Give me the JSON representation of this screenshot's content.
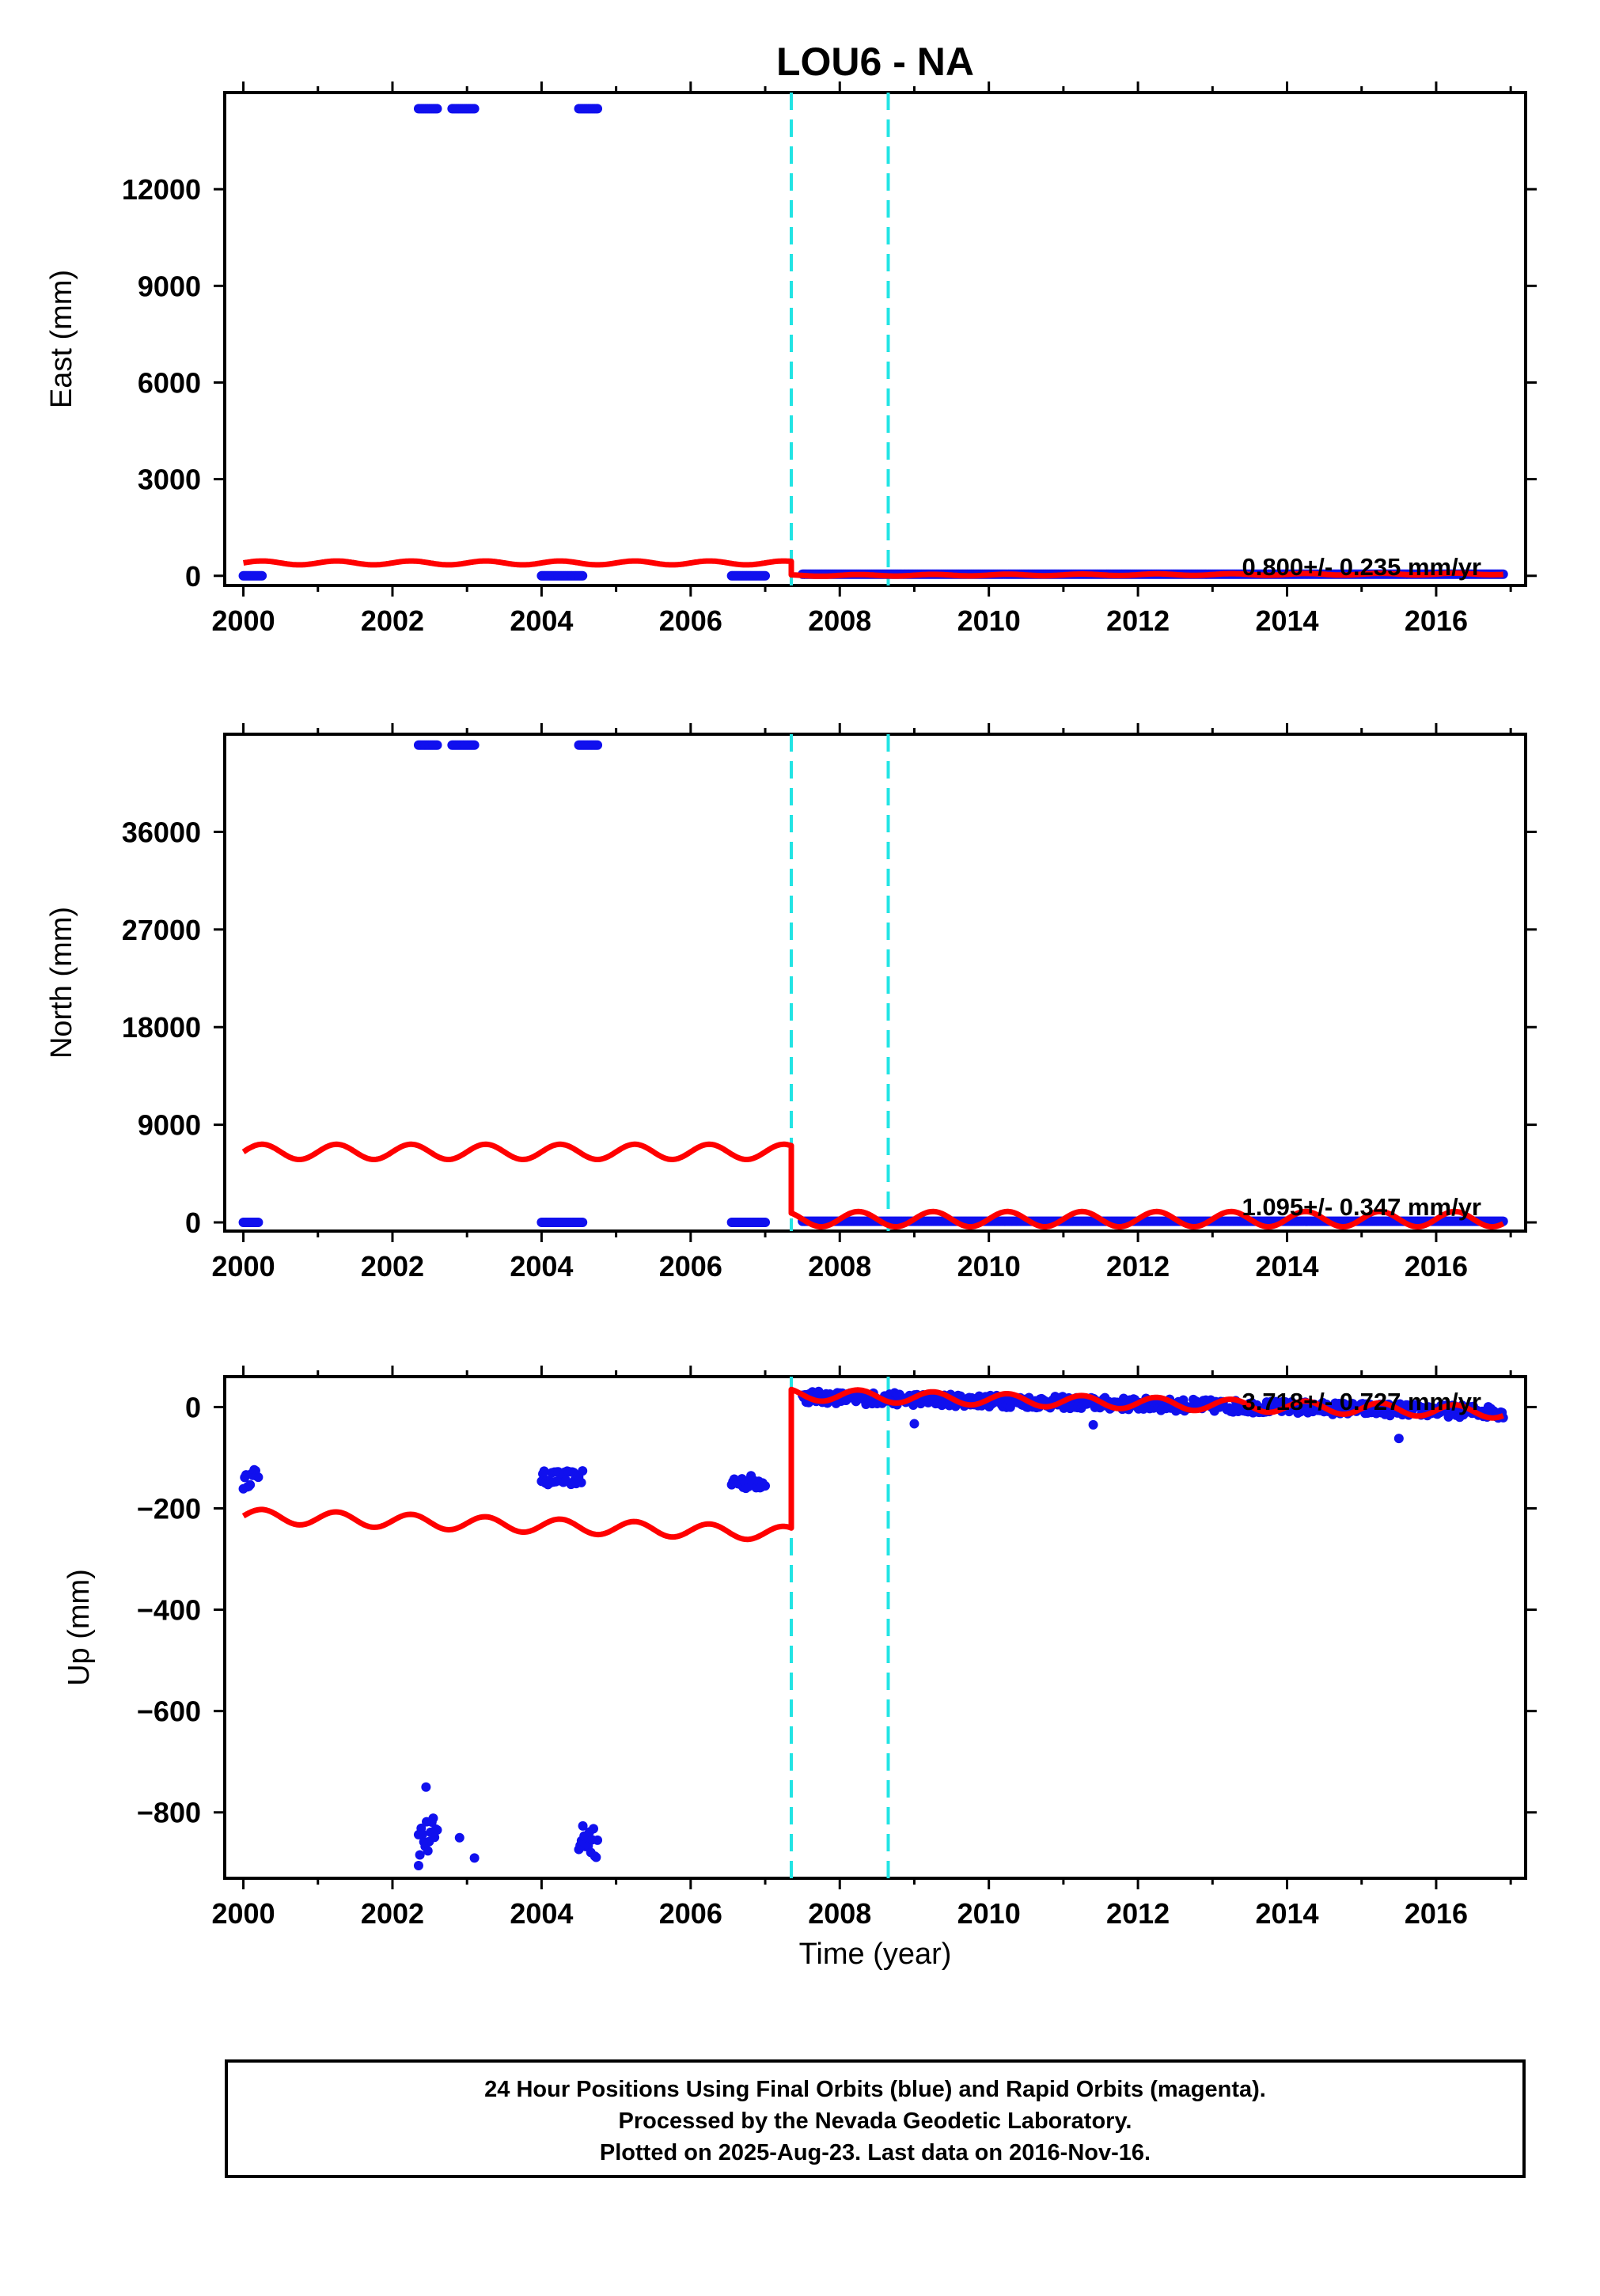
{
  "title": "LOU6 - NA",
  "xlabel": "Time (year)",
  "colors": {
    "points": "#1010ee",
    "model": "#ff0000",
    "events": "#22e4e4",
    "axis": "#000000"
  },
  "footer": {
    "line1": "24 Hour Positions Using Final Orbits (blue) and Rapid Orbits (magenta).",
    "line2": "Processed by the Nevada Geodetic Laboratory.",
    "line3": "Plotted on 2025-Aug-23. Last data on 2016-Nov-16."
  },
  "chart_data": [
    {
      "type": "scatter",
      "panel": "east",
      "ylabel": "East (mm)",
      "xlim": [
        1999.75,
        2017.2
      ],
      "ylim": [
        -300,
        15000
      ],
      "xticks": [
        2000,
        2002,
        2004,
        2006,
        2008,
        2010,
        2012,
        2014,
        2016
      ],
      "yticks": [
        0,
        3000,
        6000,
        9000,
        12000
      ],
      "ytick_labels": [
        "0",
        "3000",
        "6000",
        "9000",
        "12000"
      ],
      "velocity_label": "0.800+/- 0.235 mm/yr",
      "events": [
        2007.35,
        2008.65
      ],
      "point_clusters": [
        {
          "x": [
            2000.0,
            2000.25
          ],
          "y": [
            0,
            0
          ]
        },
        {
          "x": [
            2002.35,
            2002.6
          ],
          "y": [
            14500,
            14500
          ]
        },
        {
          "x": [
            2002.8,
            2003.1
          ],
          "y": [
            14500,
            14500
          ]
        },
        {
          "x": [
            2004.5,
            2004.75
          ],
          "y": [
            14500,
            14500
          ]
        },
        {
          "x": [
            2004.0,
            2004.55
          ],
          "y": [
            0,
            0
          ]
        },
        {
          "x": [
            2006.55,
            2007.0
          ],
          "y": [
            0,
            0
          ]
        },
        {
          "x": [
            2007.5,
            2016.9
          ],
          "y": [
            50,
            50
          ]
        }
      ],
      "model": {
        "x": [
          2000.0,
          2007.35
        ],
        "y": [
          400,
          400
        ],
        "amp": 60,
        "after": {
          "x": [
            2007.35,
            2016.9
          ],
          "y": [
            10,
            60
          ],
          "amp": 25
        }
      }
    },
    {
      "type": "scatter",
      "panel": "north",
      "ylabel": "North (mm)",
      "xlim": [
        1999.75,
        2017.2
      ],
      "ylim": [
        -800,
        45000
      ],
      "xticks": [
        2000,
        2002,
        2004,
        2006,
        2008,
        2010,
        2012,
        2014,
        2016
      ],
      "yticks": [
        0,
        9000,
        18000,
        27000,
        36000
      ],
      "ytick_labels": [
        "0",
        "9000",
        "18000",
        "27000",
        "36000"
      ],
      "velocity_label": "1.095+/- 0.347 mm/yr",
      "events": [
        2007.35,
        2008.65
      ],
      "point_clusters": [
        {
          "x": [
            2000.0,
            2000.2
          ],
          "y": [
            0,
            0
          ]
        },
        {
          "x": [
            2002.35,
            2002.6
          ],
          "y": [
            44000,
            44000
          ]
        },
        {
          "x": [
            2002.8,
            2003.1
          ],
          "y": [
            44000,
            44000
          ]
        },
        {
          "x": [
            2004.5,
            2004.75
          ],
          "y": [
            44000,
            44000
          ]
        },
        {
          "x": [
            2004.0,
            2004.55
          ],
          "y": [
            0,
            0
          ]
        },
        {
          "x": [
            2006.55,
            2007.0
          ],
          "y": [
            0,
            0
          ]
        },
        {
          "x": [
            2007.5,
            2016.9
          ],
          "y": [
            100,
            100
          ]
        }
      ],
      "model": {
        "x": [
          2000.0,
          2007.35
        ],
        "y": [
          6500,
          6500
        ],
        "amp": 700,
        "after": {
          "x": [
            2007.35,
            2016.9
          ],
          "y": [
            300,
            300
          ],
          "amp": 700
        }
      }
    },
    {
      "type": "scatter",
      "panel": "up",
      "ylabel": "Up (mm)",
      "xlim": [
        1999.75,
        2017.2
      ],
      "ylim": [
        -930,
        60
      ],
      "xticks": [
        2000,
        2002,
        2004,
        2006,
        2008,
        2010,
        2012,
        2014,
        2016
      ],
      "yticks": [
        -800,
        -600,
        -400,
        -200,
        0
      ],
      "ytick_labels": [
        "−800",
        "−600",
        "−400",
        "−200",
        "0"
      ],
      "velocity_label": "3.718+/- 0.727 mm/yr",
      "events": [
        2007.35,
        2008.65
      ],
      "point_clusters": [
        {
          "x": [
            2000.0,
            2000.2
          ],
          "y": [
            -150,
            -130
          ]
        },
        {
          "x": [
            2004.0,
            2004.55
          ],
          "y": [
            -140,
            -140
          ]
        },
        {
          "x": [
            2006.55,
            2007.0
          ],
          "y": [
            -148,
            -148
          ]
        },
        {
          "x": [
            2002.35,
            2002.6
          ],
          "y": [
            -850,
            -850
          ]
        },
        {
          "x": [
            2004.5,
            2004.75
          ],
          "y": [
            -850,
            -850
          ]
        },
        {
          "x": [
            2007.5,
            2016.9
          ],
          "y": [
            20,
            -10
          ]
        }
      ],
      "isolated_points": [
        {
          "x": 2002.45,
          "y": -750
        },
        {
          "x": 2002.9,
          "y": -850
        },
        {
          "x": 2003.1,
          "y": -890
        },
        {
          "x": 2002.35,
          "y": -905
        },
        {
          "x": 2009.0,
          "y": -33
        },
        {
          "x": 2011.4,
          "y": -35
        },
        {
          "x": 2015.5,
          "y": -62
        }
      ],
      "model": {
        "x": [
          2000.0,
          2007.35
        ],
        "y": [
          -215,
          -250
        ],
        "amp": 14,
        "after": {
          "x": [
            2007.35,
            2016.9
          ],
          "y": [
            25,
            -10
          ],
          "amp": 12
        }
      }
    }
  ]
}
